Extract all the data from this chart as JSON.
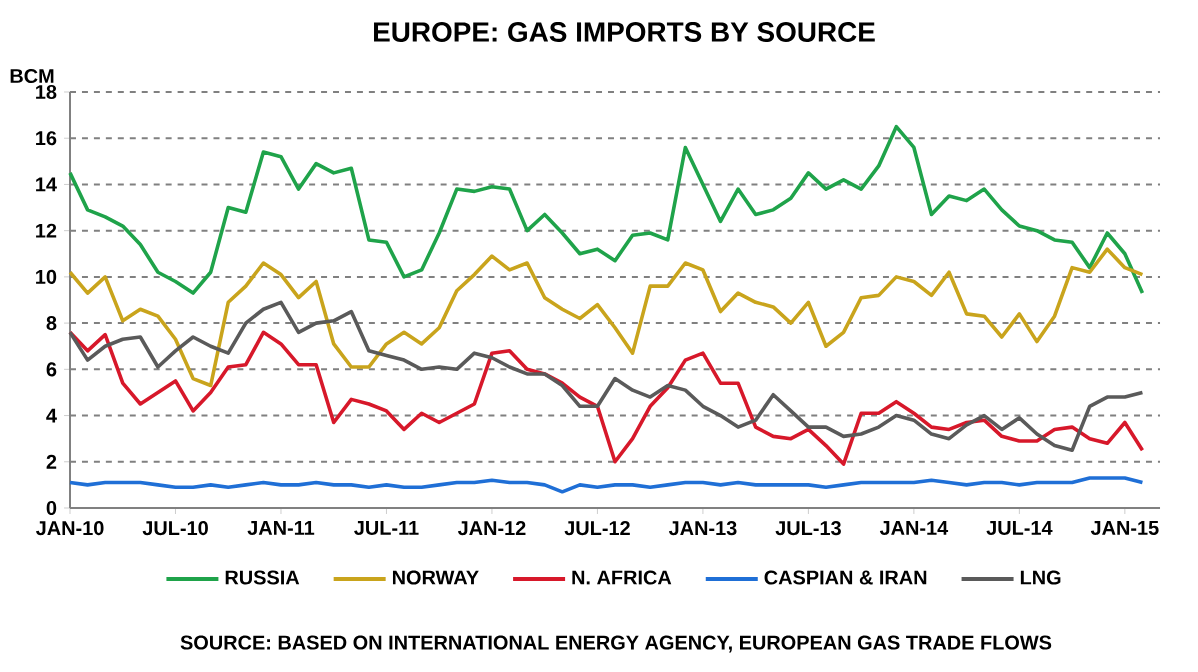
{
  "chart_data": {
    "type": "line",
    "title": "EUROPE: GAS IMPORTS BY SOURCE",
    "ylabel": "BCM",
    "annotations": [
      "SOURCE: BASED ON INTERNATIONAL ENERGY AGENCY, EUROPEAN GAS TRADE FLOWS"
    ],
    "x": [
      "2010-01",
      "2010-02",
      "2010-03",
      "2010-04",
      "2010-05",
      "2010-06",
      "2010-07",
      "2010-08",
      "2010-09",
      "2010-10",
      "2010-11",
      "2010-12",
      "2011-01",
      "2011-02",
      "2011-03",
      "2011-04",
      "2011-05",
      "2011-06",
      "2011-07",
      "2011-08",
      "2011-09",
      "2011-10",
      "2011-11",
      "2011-12",
      "2012-01",
      "2012-02",
      "2012-03",
      "2012-04",
      "2012-05",
      "2012-06",
      "2012-07",
      "2012-08",
      "2012-09",
      "2012-10",
      "2012-11",
      "2012-12",
      "2013-01",
      "2013-02",
      "2013-03",
      "2013-04",
      "2013-05",
      "2013-06",
      "2013-07",
      "2013-08",
      "2013-09",
      "2013-10",
      "2013-11",
      "2013-12",
      "2014-01",
      "2014-02",
      "2014-03",
      "2014-04",
      "2014-05",
      "2014-06",
      "2014-07",
      "2014-08",
      "2014-09",
      "2014-10",
      "2014-11",
      "2014-12",
      "2015-01",
      "2015-02"
    ],
    "series": [
      {
        "name": "RUSSIA",
        "color": "#1fa34a",
        "values": [
          14.5,
          12.9,
          12.6,
          12.2,
          11.4,
          10.2,
          9.8,
          9.3,
          10.2,
          13.0,
          12.8,
          15.4,
          15.2,
          13.8,
          14.9,
          14.5,
          14.7,
          11.6,
          11.5,
          10.0,
          10.3,
          11.9,
          13.8,
          13.7,
          13.9,
          13.8,
          12.0,
          12.7,
          11.9,
          11.0,
          11.2,
          10.7,
          11.8,
          11.9,
          11.6,
          15.6,
          14.0,
          12.4,
          13.8,
          12.7,
          12.9,
          13.4,
          14.5,
          13.8,
          14.2,
          13.8,
          14.8,
          16.5,
          15.6,
          12.7,
          13.5,
          13.3,
          13.8,
          12.9,
          12.2,
          12.0,
          11.6,
          11.5,
          10.4,
          11.9,
          11.0,
          9.3
        ]
      },
      {
        "name": "NORWAY",
        "color": "#c9a41c",
        "values": [
          10.2,
          9.3,
          10.0,
          8.1,
          8.6,
          8.3,
          7.3,
          5.6,
          5.3,
          8.9,
          9.6,
          10.6,
          10.1,
          9.1,
          9.8,
          7.1,
          6.1,
          6.1,
          7.1,
          7.6,
          7.1,
          7.8,
          9.4,
          10.1,
          10.9,
          10.3,
          10.6,
          9.1,
          8.6,
          8.2,
          8.8,
          7.8,
          6.7,
          9.6,
          9.6,
          10.6,
          10.3,
          8.5,
          9.3,
          8.9,
          8.7,
          8.0,
          8.9,
          7.0,
          7.6,
          9.1,
          9.2,
          10.0,
          9.8,
          9.2,
          10.2,
          8.4,
          8.3,
          7.4,
          8.4,
          7.2,
          8.3,
          10.4,
          10.2,
          11.2,
          10.4,
          10.1
        ]
      },
      {
        "name": "N. AFRICA",
        "color": "#d7182a",
        "values": [
          7.6,
          6.8,
          7.5,
          5.4,
          4.5,
          5.0,
          5.5,
          4.2,
          5.0,
          6.1,
          6.2,
          7.6,
          7.1,
          6.2,
          6.2,
          3.7,
          4.7,
          4.5,
          4.2,
          3.4,
          4.1,
          3.7,
          4.1,
          4.5,
          6.7,
          6.8,
          6.0,
          5.8,
          5.4,
          4.8,
          4.4,
          2.0,
          3.0,
          4.4,
          5.2,
          6.4,
          6.7,
          5.4,
          5.4,
          3.5,
          3.1,
          3.0,
          3.4,
          2.7,
          1.9,
          4.1,
          4.1,
          4.6,
          4.1,
          3.5,
          3.4,
          3.7,
          3.8,
          3.1,
          2.9,
          2.9,
          3.4,
          3.5,
          3.0,
          2.8,
          3.7,
          2.5
        ]
      },
      {
        "name": "CASPIAN & IRAN",
        "color": "#1f6fd6",
        "values": [
          1.1,
          1.0,
          1.1,
          1.1,
          1.1,
          1.0,
          0.9,
          0.9,
          1.0,
          0.9,
          1.0,
          1.1,
          1.0,
          1.0,
          1.1,
          1.0,
          1.0,
          0.9,
          1.0,
          0.9,
          0.9,
          1.0,
          1.1,
          1.1,
          1.2,
          1.1,
          1.1,
          1.0,
          0.7,
          1.0,
          0.9,
          1.0,
          1.0,
          0.9,
          1.0,
          1.1,
          1.1,
          1.0,
          1.1,
          1.0,
          1.0,
          1.0,
          1.0,
          0.9,
          1.0,
          1.1,
          1.1,
          1.1,
          1.1,
          1.2,
          1.1,
          1.0,
          1.1,
          1.1,
          1.0,
          1.1,
          1.1,
          1.1,
          1.3,
          1.3,
          1.3,
          1.1
        ]
      },
      {
        "name": "LNG",
        "color": "#5a5a5a",
        "values": [
          7.6,
          6.4,
          7.0,
          7.3,
          7.4,
          6.1,
          6.8,
          7.4,
          7.0,
          6.7,
          8.0,
          8.6,
          8.9,
          7.6,
          8.0,
          8.1,
          8.5,
          6.8,
          6.6,
          6.4,
          6.0,
          6.1,
          6.0,
          6.7,
          6.5,
          6.1,
          5.8,
          5.8,
          5.3,
          4.4,
          4.4,
          5.6,
          5.1,
          4.8,
          5.3,
          5.1,
          4.4,
          4.0,
          3.5,
          3.8,
          4.9,
          4.2,
          3.5,
          3.5,
          3.1,
          3.2,
          3.5,
          4.0,
          3.8,
          3.2,
          3.0,
          3.6,
          4.0,
          3.4,
          3.9,
          3.2,
          2.7,
          2.5,
          4.4,
          4.8,
          4.8,
          5.0
        ]
      }
    ],
    "xlim": [
      "2010-01",
      "2015-03"
    ],
    "xticks": [
      {
        "value": "2010-01",
        "label": "JAN-10"
      },
      {
        "value": "2010-07",
        "label": "JUL-10"
      },
      {
        "value": "2011-01",
        "label": "JAN-11"
      },
      {
        "value": "2011-07",
        "label": "JUL-11"
      },
      {
        "value": "2012-01",
        "label": "JAN-12"
      },
      {
        "value": "2012-07",
        "label": "JUL-12"
      },
      {
        "value": "2013-01",
        "label": "JAN-13"
      },
      {
        "value": "2013-07",
        "label": "JUL-13"
      },
      {
        "value": "2014-01",
        "label": "JAN-14"
      },
      {
        "value": "2014-07",
        "label": "JUL-14"
      },
      {
        "value": "2015-01",
        "label": "JAN-15"
      }
    ],
    "ylim": [
      0,
      18
    ],
    "yticks": [
      0,
      2,
      4,
      6,
      8,
      10,
      12,
      14,
      16,
      18
    ],
    "grid": "y",
    "legend": "bottom",
    "marker": "none",
    "line_style": "solid"
  }
}
